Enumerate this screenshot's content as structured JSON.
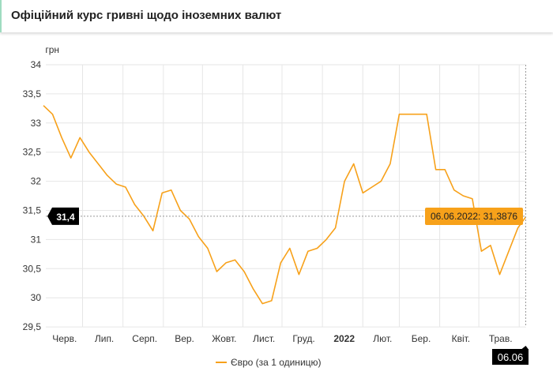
{
  "header": {
    "title": "Офіційний курс гривні щодо іноземних валют"
  },
  "colors": {
    "series": "#f7a11a",
    "tooltip_bg": "#f7a11a",
    "crosshair_label_bg": "#000000",
    "grid": "#e6e6e6"
  },
  "chart_data": {
    "type": "line",
    "title": "",
    "ylabel": "грн",
    "ylim": [
      29.5,
      34
    ],
    "yticks": [
      "34",
      "33,5",
      "33",
      "32,5",
      "32",
      "31,5",
      "31",
      "30,5",
      "30",
      "29,5"
    ],
    "yticks_values": [
      34,
      33.5,
      33,
      32.5,
      32,
      31.5,
      31,
      30.5,
      30,
      29.5
    ],
    "xlim": [
      "2021-06-01",
      "2022-06-06"
    ],
    "xticks": [
      {
        "label": "Черв.",
        "date": "2021-06-01"
      },
      {
        "label": "Лип.",
        "date": "2021-07-01"
      },
      {
        "label": "Серп.",
        "date": "2021-08-01"
      },
      {
        "label": "Вер.",
        "date": "2021-09-01"
      },
      {
        "label": "Жовт.",
        "date": "2021-10-01"
      },
      {
        "label": "Лист.",
        "date": "2021-11-01"
      },
      {
        "label": "Груд.",
        "date": "2021-12-01"
      },
      {
        "label": "2022",
        "date": "2022-01-01",
        "bold": true
      },
      {
        "label": "Лют.",
        "date": "2022-02-01"
      },
      {
        "label": "Бер.",
        "date": "2022-03-01"
      },
      {
        "label": "Квіт.",
        "date": "2022-04-01"
      },
      {
        "label": "Трав.",
        "date": "2022-05-01"
      }
    ],
    "grid": true,
    "legend_placement": "bottom",
    "series": [
      {
        "name": "Євро (за 1 одиницю)",
        "x": [
          "2021-06-01",
          "2021-06-08",
          "2021-06-15",
          "2021-06-22",
          "2021-06-29",
          "2021-07-06",
          "2021-07-13",
          "2021-07-20",
          "2021-07-27",
          "2021-08-03",
          "2021-08-10",
          "2021-08-17",
          "2021-08-24",
          "2021-08-31",
          "2021-09-07",
          "2021-09-14",
          "2021-09-21",
          "2021-09-28",
          "2021-10-05",
          "2021-10-12",
          "2021-10-19",
          "2021-10-26",
          "2021-11-02",
          "2021-11-09",
          "2021-11-16",
          "2021-11-23",
          "2021-11-30",
          "2021-12-07",
          "2021-12-14",
          "2021-12-21",
          "2021-12-28",
          "2022-01-04",
          "2022-01-11",
          "2022-01-18",
          "2022-01-25",
          "2022-02-01",
          "2022-02-08",
          "2022-02-15",
          "2022-02-22",
          "2022-03-01",
          "2022-03-08",
          "2022-03-15",
          "2022-03-22",
          "2022-03-29",
          "2022-04-05",
          "2022-04-12",
          "2022-04-19",
          "2022-04-26",
          "2022-05-03",
          "2022-05-10",
          "2022-05-17",
          "2022-05-24",
          "2022-05-31",
          "2022-06-06"
        ],
        "y": [
          33.3,
          33.15,
          32.75,
          32.4,
          32.75,
          32.5,
          32.3,
          32.1,
          31.95,
          31.9,
          31.6,
          31.4,
          31.15,
          31.8,
          31.85,
          31.5,
          31.35,
          31.05,
          30.85,
          30.45,
          30.6,
          30.65,
          30.45,
          30.15,
          29.9,
          29.95,
          30.6,
          30.85,
          30.4,
          30.8,
          30.85,
          31.0,
          31.2,
          32.0,
          32.3,
          31.8,
          31.9,
          32.0,
          32.3,
          33.15,
          33.15,
          33.15,
          33.15,
          32.2,
          32.2,
          31.85,
          31.75,
          31.7,
          30.8,
          30.9,
          30.4,
          30.8,
          31.2,
          31.3876
        ]
      }
    ],
    "crosshair": {
      "y_label": "31,4",
      "x_label": "06.06"
    },
    "tooltip": {
      "text": "06.06.2022: 31,3876"
    }
  }
}
